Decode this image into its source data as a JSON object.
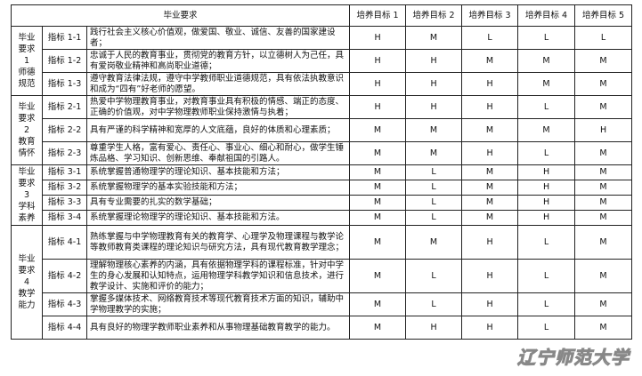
{
  "header": {
    "requirement": "毕业要求",
    "goals": [
      "培养目标 1",
      "培养目标 2",
      "培养目标 3",
      "培养目标 4",
      "培养目标 5"
    ]
  },
  "groups": [
    {
      "label_lines": [
        "毕业",
        "要求",
        "1",
        "师德",
        "规范"
      ],
      "rows": [
        {
          "indicator": "指标 1-1",
          "text": "践行社会主义核心价值观，做爱国、敬业、诚信、友善的国家建设者；",
          "ratings": [
            "H",
            "M",
            "L",
            "L",
            "L"
          ]
        },
        {
          "indicator": "指标 1-2",
          "text": "忠诚于人民的教育事业，贯彻党的教育方针，以立德树人为己任，具有爱岗敬业精神和高尚职业道德；",
          "ratings": [
            "H",
            "H",
            "M",
            "M",
            "M"
          ]
        },
        {
          "indicator": "指标 1-3",
          "text": "遵守教育法律法规，遵守中学教师职业道德规范，具有依法执教意识和成为“四有”好老师的愿望。",
          "ratings": [
            "H",
            "H",
            "H",
            "M",
            "M"
          ]
        }
      ]
    },
    {
      "label_lines": [
        "毕业",
        "要求",
        "2",
        "教育",
        "情怀"
      ],
      "rows": [
        {
          "indicator": "指标 2-1",
          "text": "热爱中学物理教育事业，对教育事业具有积极的情感、端正的态度、正确的价值观，对中学物理教师职业保持激情与执着；",
          "ratings": [
            "H",
            "H",
            "H",
            "L",
            "M"
          ]
        },
        {
          "indicator": "指标 2-2",
          "text": "具有严谨的科学精神和宽厚的人文底蕴，良好的体质和心理素质；",
          "ratings": [
            "M",
            "M",
            "M",
            "M",
            "H"
          ]
        },
        {
          "indicator": "指标 2-3",
          "text": "尊重学生人格，富有爱心、责任心、事业心、细心和耐心，做学生锤炼品格、学习知识、创新思维、奉献祖国的引路人。",
          "ratings": [
            "M",
            "M",
            "H",
            "L",
            "M"
          ]
        }
      ]
    },
    {
      "label_lines": [
        "毕业",
        "要求",
        "3",
        "学科",
        "素养"
      ],
      "rows": [
        {
          "indicator": "指标 3-1",
          "text": "系统掌握普通物理学的理论知识、基本技能和方法；",
          "ratings": [
            "M",
            "L",
            "M",
            "H",
            "M"
          ]
        },
        {
          "indicator": "指标 3-2",
          "text": "系统掌握物理学的基本实验技能和方法；",
          "ratings": [
            "M",
            "L",
            "M",
            "H",
            "M"
          ]
        },
        {
          "indicator": "指标 3-3",
          "text": "具有专业需要的扎实的数学基础；",
          "ratings": [
            "M",
            "L",
            "M",
            "H",
            "M"
          ]
        },
        {
          "indicator": "指标 3-4",
          "text": "系统掌握理论物理学的理论知识、基本技能和方法。",
          "ratings": [
            "M",
            "L",
            "M",
            "H",
            "M"
          ]
        }
      ]
    },
    {
      "label_lines": [
        "毕业",
        "要求",
        "4",
        "教学",
        "能力"
      ],
      "rows": [
        {
          "indicator": "指标 4-1",
          "text": "熟练掌握与中学物理教育有关的教育学、心理学及物理课程与教学论等教师教育类课程的理论知识与研究方法，具有现代教育教学理念；",
          "ratings": [
            "M",
            "M",
            "H",
            "L",
            "M"
          ]
        },
        {
          "indicator": "指标 4-2",
          "text": "理解物理核心素养的内涵，具有依据物理学科的课程标准，针对中学生的身心发展和认知特点，运用物理学科教学知识和信息技术，进行教学设计、实施和评价的能力；",
          "ratings": [
            "M",
            "L",
            "H",
            "L",
            "M"
          ]
        },
        {
          "indicator": "指标 4-3",
          "text": "掌握多媒体技术、网络教育技术等现代教育技术方面的知识，辅助中学物理教学的实施；",
          "ratings": [
            "M",
            "L",
            "H",
            "L",
            "M"
          ]
        },
        {
          "indicator": "指标 4-4",
          "text": "具有良好的物理学教师职业素养和从事物理基础教育教学的能力。",
          "ratings": [
            "M",
            "H",
            "H",
            "L",
            "M"
          ]
        }
      ]
    }
  ],
  "watermark": "辽宁师范大学"
}
